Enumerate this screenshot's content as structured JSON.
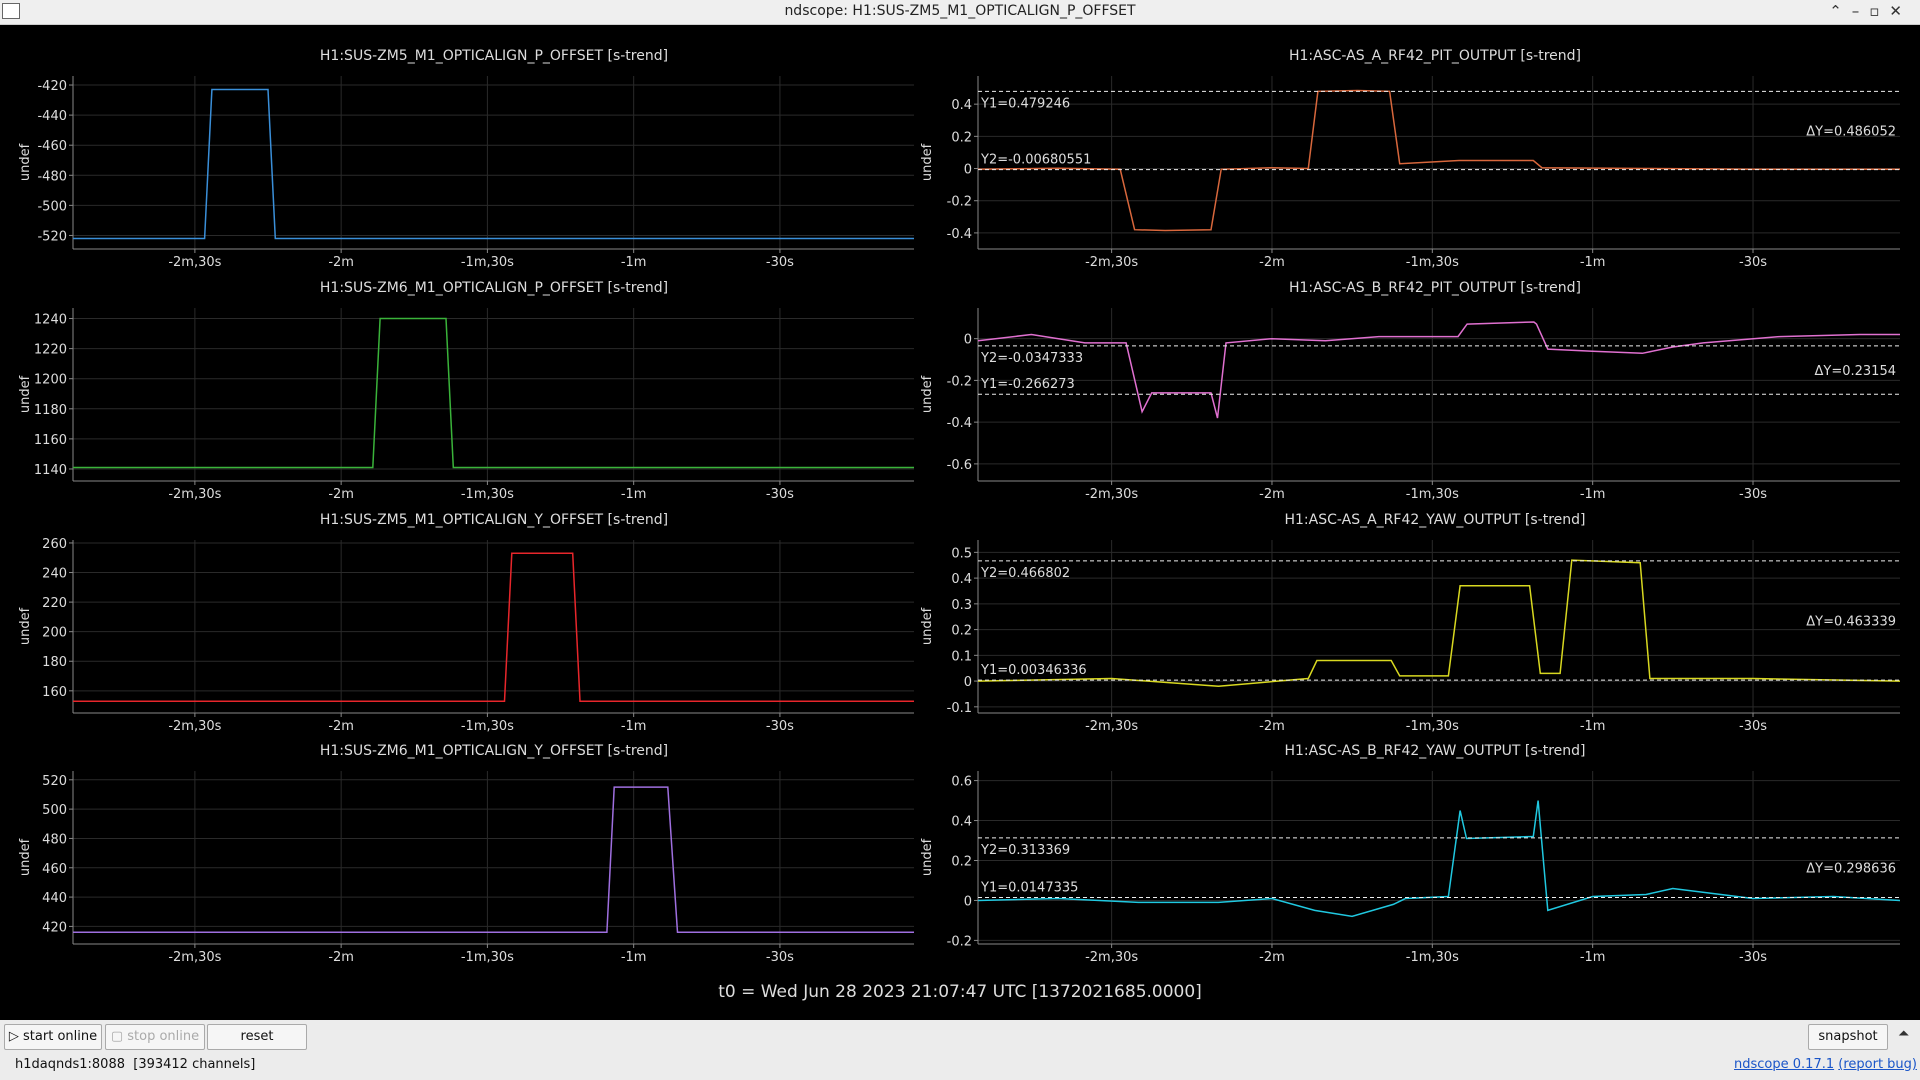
{
  "window": {
    "title": "ndscope: H1:SUS-ZM5_M1_OPTICALIGN_P_OFFSET"
  },
  "chart_data": [
    {
      "type": "line",
      "title": "H1:SUS-ZM5_M1_OPTICALIGN_P_OFFSET [s-trend]",
      "ylabel": "undef",
      "grid": true,
      "x": [
        -175,
        -148,
        -146.5,
        -135,
        -133.5,
        -2.5
      ],
      "series": [
        {
          "color": "#3a8fd9",
          "values": [
            -522,
            -522,
            -423,
            -423,
            -522,
            -522
          ]
        }
      ],
      "xlim": [
        -175,
        -2.5
      ],
      "xticks": [
        {
          "value": -150,
          "label": "-2m,30s"
        },
        {
          "value": -120,
          "label": "-2m"
        },
        {
          "value": -90,
          "label": "-1m,30s"
        },
        {
          "value": -60,
          "label": "-1m"
        },
        {
          "value": -30,
          "label": "-30s"
        }
      ],
      "ylim": [
        -529,
        -414
      ],
      "yticks": [
        -520,
        -500,
        -480,
        -460,
        -440,
        -420
      ]
    },
    {
      "type": "line",
      "title": "H1:ASC-AS_A_RF42_PIT_OUTPUT [s-trend]",
      "ylabel": "undef",
      "grid": true,
      "x": [
        -175,
        -160,
        -148.4,
        -145.7,
        -140,
        -131.4,
        -129.5,
        -120,
        -113.2,
        -111.4,
        -104,
        -98,
        -96.1,
        -85,
        -71.1,
        -69.5,
        -50,
        -30,
        -2.5
      ],
      "series": [
        {
          "color": "#d8673c",
          "values": [
            -0.005,
            0.002,
            -0.005,
            -0.38,
            -0.385,
            -0.38,
            -0.005,
            0.005,
            0,
            0.48,
            0.485,
            0.48,
            0.03,
            0.05,
            0.05,
            0.005,
            0,
            -0.005,
            -0.005
          ]
        }
      ],
      "xlim": [
        -175,
        -2.5
      ],
      "xticks": [
        {
          "value": -150,
          "label": "-2m,30s"
        },
        {
          "value": -120,
          "label": "-2m"
        },
        {
          "value": -90,
          "label": "-1m,30s"
        },
        {
          "value": -60,
          "label": "-1m"
        },
        {
          "value": -30,
          "label": "-30s"
        }
      ],
      "ylim": [
        -0.5,
        0.575
      ],
      "yticks": [
        -0.4,
        -0.2,
        0,
        0.2,
        0.4
      ],
      "cursors": [
        {
          "value": 0.479246,
          "label": "Y1=0.479246"
        },
        {
          "value": -0.00680551,
          "label": "Y2=-0.00680551"
        }
      ],
      "delta": {
        "value": 0.486052,
        "label": "ΔY=0.486052"
      }
    },
    {
      "type": "line",
      "title": "H1:SUS-ZM6_M1_OPTICALIGN_P_OFFSET [s-trend]",
      "ylabel": "undef",
      "grid": true,
      "x": [
        -175,
        -113.5,
        -112,
        -98.5,
        -97,
        -2.5
      ],
      "series": [
        {
          "color": "#3ab33a",
          "values": [
            1141,
            1141,
            1240,
            1240,
            1141,
            1141
          ]
        }
      ],
      "xlim": [
        -175,
        -2.5
      ],
      "xticks": [
        {
          "value": -150,
          "label": "-2m,30s"
        },
        {
          "value": -120,
          "label": "-2m"
        },
        {
          "value": -90,
          "label": "-1m,30s"
        },
        {
          "value": -60,
          "label": "-1m"
        },
        {
          "value": -30,
          "label": "-30s"
        }
      ],
      "ylim": [
        1132,
        1247
      ],
      "yticks": [
        1140,
        1160,
        1180,
        1200,
        1220,
        1240
      ]
    },
    {
      "type": "line",
      "title": "H1:ASC-AS_B_RF42_PIT_OUTPUT [s-trend]",
      "ylabel": "undef",
      "grid": true,
      "x": [
        -175,
        -165,
        -155,
        -147.3,
        -144.3,
        -142.5,
        -131.4,
        -130.2,
        -128.6,
        -120,
        -110,
        -100,
        -85.2,
        -83.5,
        -71,
        -70.5,
        -68.4,
        -60,
        -50.7,
        -45,
        -39.3,
        -25,
        -10,
        -2.5
      ],
      "series": [
        {
          "color": "#e070d0",
          "values": [
            -0.01,
            0.02,
            -0.02,
            -0.02,
            -0.35,
            -0.26,
            -0.26,
            -0.38,
            -0.02,
            0,
            -0.01,
            0.01,
            0.01,
            0.07,
            0.08,
            0.07,
            -0.05,
            -0.06,
            -0.07,
            -0.04,
            -0.02,
            0.01,
            0.02,
            0.02
          ]
        }
      ],
      "xlim": [
        -175,
        -2.5
      ],
      "xticks": [
        {
          "value": -150,
          "label": "-2m,30s"
        },
        {
          "value": -120,
          "label": "-2m"
        },
        {
          "value": -90,
          "label": "-1m,30s"
        },
        {
          "value": -60,
          "label": "-1m"
        },
        {
          "value": -30,
          "label": "-30s"
        }
      ],
      "ylim": [
        -0.682,
        0.147
      ],
      "yticks": [
        -0.6,
        -0.4,
        -0.2,
        0
      ],
      "cursors": [
        {
          "value": -0.266273,
          "label": "Y1=-0.266273"
        },
        {
          "value": -0.0347333,
          "label": "Y2=-0.0347333"
        }
      ],
      "delta": {
        "value": 0.23154,
        "label": "ΔY=0.23154"
      }
    },
    {
      "type": "line",
      "title": "H1:SUS-ZM5_M1_OPTICALIGN_Y_OFFSET [s-trend]",
      "ylabel": "undef",
      "grid": true,
      "x": [
        -175,
        -86.5,
        -85,
        -72.5,
        -71,
        -2.5
      ],
      "series": [
        {
          "color": "#e8262b",
          "values": [
            153,
            153,
            253,
            253,
            153,
            153
          ]
        }
      ],
      "xlim": [
        -175,
        -2.5
      ],
      "xticks": [
        {
          "value": -150,
          "label": "-2m,30s"
        },
        {
          "value": -120,
          "label": "-2m"
        },
        {
          "value": -90,
          "label": "-1m,30s"
        },
        {
          "value": -60,
          "label": "-1m"
        },
        {
          "value": -30,
          "label": "-30s"
        }
      ],
      "ylim": [
        145,
        262
      ],
      "yticks": [
        160,
        180,
        200,
        220,
        240,
        260
      ]
    },
    {
      "type": "line",
      "title": "H1:ASC-AS_A_RF42_YAW_OUTPUT [s-trend]",
      "ylabel": "undef",
      "grid": true,
      "x": [
        -175,
        -150,
        -130,
        -113.2,
        -111.6,
        -97.7,
        -96.1,
        -87,
        -84.8,
        -71.8,
        -69.8,
        -66.1,
        -63.9,
        -51.1,
        -49.3,
        -30,
        -2.5
      ],
      "series": [
        {
          "color": "#d8d820",
          "values": [
            0,
            0.01,
            -0.02,
            0.01,
            0.08,
            0.08,
            0.02,
            0.02,
            0.37,
            0.37,
            0.03,
            0.03,
            0.47,
            0.46,
            0.01,
            0.01,
            0
          ]
        }
      ],
      "xlim": [
        -175,
        -2.5
      ],
      "xticks": [
        {
          "value": -150,
          "label": "-2m,30s"
        },
        {
          "value": -120,
          "label": "-2m"
        },
        {
          "value": -90,
          "label": "-1m,30s"
        },
        {
          "value": -60,
          "label": "-1m"
        },
        {
          "value": -30,
          "label": "-30s"
        }
      ],
      "ylim": [
        -0.124,
        0.548
      ],
      "yticks": [
        -0.1,
        0,
        0.1,
        0.2,
        0.3,
        0.4,
        0.5
      ],
      "cursors": [
        {
          "value": 0.00346336,
          "label": "Y1=0.00346336"
        },
        {
          "value": 0.466802,
          "label": "Y2=0.466802"
        }
      ],
      "delta": {
        "value": 0.463339,
        "label": "ΔY=0.463339"
      }
    },
    {
      "type": "line",
      "title": "H1:SUS-ZM6_M1_OPTICALIGN_Y_OFFSET [s-trend]",
      "ylabel": "undef",
      "grid": true,
      "x": [
        -175,
        -65.5,
        -64,
        -53,
        -51,
        -2.5
      ],
      "series": [
        {
          "color": "#9f6fe0",
          "values": [
            416,
            416,
            515,
            515,
            416,
            416
          ]
        }
      ],
      "xlim": [
        -175,
        -2.5
      ],
      "xticks": [
        {
          "value": -150,
          "label": "-2m,30s"
        },
        {
          "value": -120,
          "label": "-2m"
        },
        {
          "value": -90,
          "label": "-1m,30s"
        },
        {
          "value": -60,
          "label": "-1m"
        },
        {
          "value": -30,
          "label": "-30s"
        }
      ],
      "ylim": [
        408,
        526
      ],
      "yticks": [
        420,
        440,
        460,
        480,
        500,
        520
      ]
    },
    {
      "type": "line",
      "title": "H1:ASC-AS_B_RF42_YAW_OUTPUT [s-trend]",
      "ylabel": "undef",
      "grid": true,
      "x": [
        -175,
        -160,
        -145,
        -130,
        -120,
        -112,
        -105,
        -97.3,
        -95,
        -87,
        -84.8,
        -83.6,
        -71.1,
        -70.2,
        -68.4,
        -60,
        -50,
        -45,
        -30,
        -15,
        -2.5
      ],
      "series": [
        {
          "color": "#20c8e0",
          "values": [
            0,
            0.01,
            -0.01,
            -0.01,
            0.01,
            -0.05,
            -0.08,
            -0.02,
            0.01,
            0.02,
            0.45,
            0.31,
            0.32,
            0.5,
            -0.05,
            0.02,
            0.03,
            0.06,
            0.01,
            0.02,
            0
          ]
        }
      ],
      "xlim": [
        -175,
        -2.5
      ],
      "xticks": [
        {
          "value": -150,
          "label": "-2m,30s"
        },
        {
          "value": -120,
          "label": "-2m"
        },
        {
          "value": -90,
          "label": "-1m,30s"
        },
        {
          "value": -60,
          "label": "-1m"
        },
        {
          "value": -30,
          "label": "-30s"
        }
      ],
      "ylim": [
        -0.218,
        0.648
      ],
      "yticks": [
        -0.2,
        0,
        0.2,
        0.4,
        0.6
      ],
      "cursors": [
        {
          "value": 0.0147335,
          "label": "Y1=0.0147335"
        },
        {
          "value": 0.313369,
          "label": "Y2=0.313369"
        }
      ],
      "delta": {
        "value": 0.298636,
        "label": "ΔY=0.298636"
      }
    }
  ],
  "t0_label": "t0 = Wed Jun 28 2023 21:07:47 UTC [1372021685.0000]",
  "toolbar": {
    "start": "start online",
    "stop": "stop online",
    "reset": "reset",
    "snapshot": "snapshot"
  },
  "status": {
    "server": "h1daqnds1:8088  [393412 channels]",
    "version": "ndscope 0.17.1",
    "report": "(report bug)"
  }
}
